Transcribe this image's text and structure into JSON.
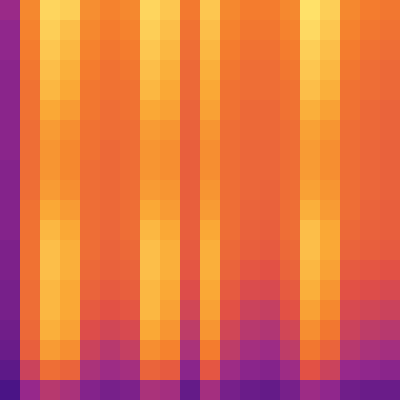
{
  "chart_data": {
    "type": "heatmap",
    "tick_labels": false,
    "cells": [
      [
        25,
        70,
        92,
        90,
        72,
        68,
        70,
        92,
        88,
        65,
        88,
        70,
        66,
        66,
        70,
        95,
        90,
        70,
        66,
        64
      ],
      [
        22,
        68,
        90,
        86,
        70,
        66,
        68,
        90,
        86,
        62,
        86,
        68,
        64,
        64,
        68,
        93,
        88,
        68,
        64,
        62
      ],
      [
        22,
        66,
        88,
        84,
        68,
        64,
        66,
        88,
        84,
        60,
        84,
        66,
        62,
        62,
        66,
        90,
        86,
        66,
        62,
        60
      ],
      [
        20,
        64,
        86,
        82,
        66,
        62,
        64,
        86,
        82,
        58,
        82,
        64,
        60,
        60,
        64,
        88,
        84,
        64,
        60,
        58
      ],
      [
        20,
        62,
        84,
        80,
        64,
        62,
        62,
        84,
        80,
        58,
        80,
        62,
        60,
        60,
        62,
        86,
        82,
        62,
        60,
        58
      ],
      [
        20,
        62,
        80,
        76,
        64,
        60,
        62,
        80,
        78,
        56,
        78,
        62,
        58,
        58,
        62,
        82,
        78,
        62,
        58,
        56
      ],
      [
        20,
        60,
        76,
        72,
        62,
        60,
        60,
        76,
        74,
        55,
        74,
        60,
        58,
        58,
        60,
        78,
        74,
        60,
        58,
        56
      ],
      [
        20,
        60,
        74,
        70,
        62,
        58,
        60,
        74,
        72,
        54,
        72,
        60,
        57,
        57,
        60,
        76,
        72,
        60,
        57,
        55
      ],
      [
        18,
        60,
        74,
        70,
        60,
        58,
        60,
        74,
        72,
        54,
        72,
        60,
        57,
        57,
        60,
        76,
        72,
        60,
        57,
        55
      ],
      [
        18,
        60,
        76,
        72,
        60,
        58,
        60,
        76,
        74,
        54,
        74,
        60,
        57,
        56,
        60,
        78,
        74,
        60,
        57,
        55
      ],
      [
        18,
        62,
        80,
        76,
        60,
        58,
        60,
        80,
        76,
        54,
        76,
        60,
        56,
        55,
        60,
        82,
        76,
        60,
        56,
        54
      ],
      [
        18,
        62,
        84,
        80,
        60,
        57,
        60,
        84,
        80,
        54,
        80,
        60,
        55,
        54,
        60,
        86,
        80,
        58,
        55,
        54
      ],
      [
        16,
        62,
        86,
        82,
        60,
        56,
        58,
        86,
        82,
        52,
        82,
        58,
        54,
        52,
        58,
        86,
        80,
        56,
        54,
        52
      ],
      [
        16,
        62,
        86,
        82,
        58,
        55,
        56,
        86,
        82,
        50,
        82,
        56,
        50,
        48,
        56,
        84,
        78,
        52,
        50,
        48
      ],
      [
        14,
        60,
        84,
        80,
        56,
        52,
        54,
        84,
        80,
        46,
        80,
        52,
        45,
        44,
        52,
        82,
        74,
        48,
        46,
        44
      ],
      [
        14,
        60,
        84,
        80,
        52,
        48,
        50,
        84,
        78,
        42,
        78,
        48,
        40,
        38,
        48,
        78,
        70,
        44,
        42,
        40
      ],
      [
        12,
        58,
        82,
        78,
        46,
        42,
        44,
        80,
        74,
        36,
        74,
        42,
        34,
        32,
        42,
        72,
        64,
        40,
        36,
        34
      ],
      [
        10,
        54,
        76,
        72,
        40,
        34,
        38,
        72,
        68,
        30,
        66,
        36,
        28,
        26,
        36,
        64,
        56,
        34,
        30,
        28
      ],
      [
        6,
        40,
        60,
        56,
        30,
        26,
        28,
        56,
        52,
        20,
        50,
        26,
        20,
        18,
        26,
        48,
        40,
        24,
        22,
        20
      ],
      [
        0,
        24,
        34,
        30,
        18,
        14,
        16,
        30,
        28,
        8,
        28,
        14,
        10,
        8,
        14,
        26,
        22,
        12,
        10,
        10
      ]
    ]
  }
}
